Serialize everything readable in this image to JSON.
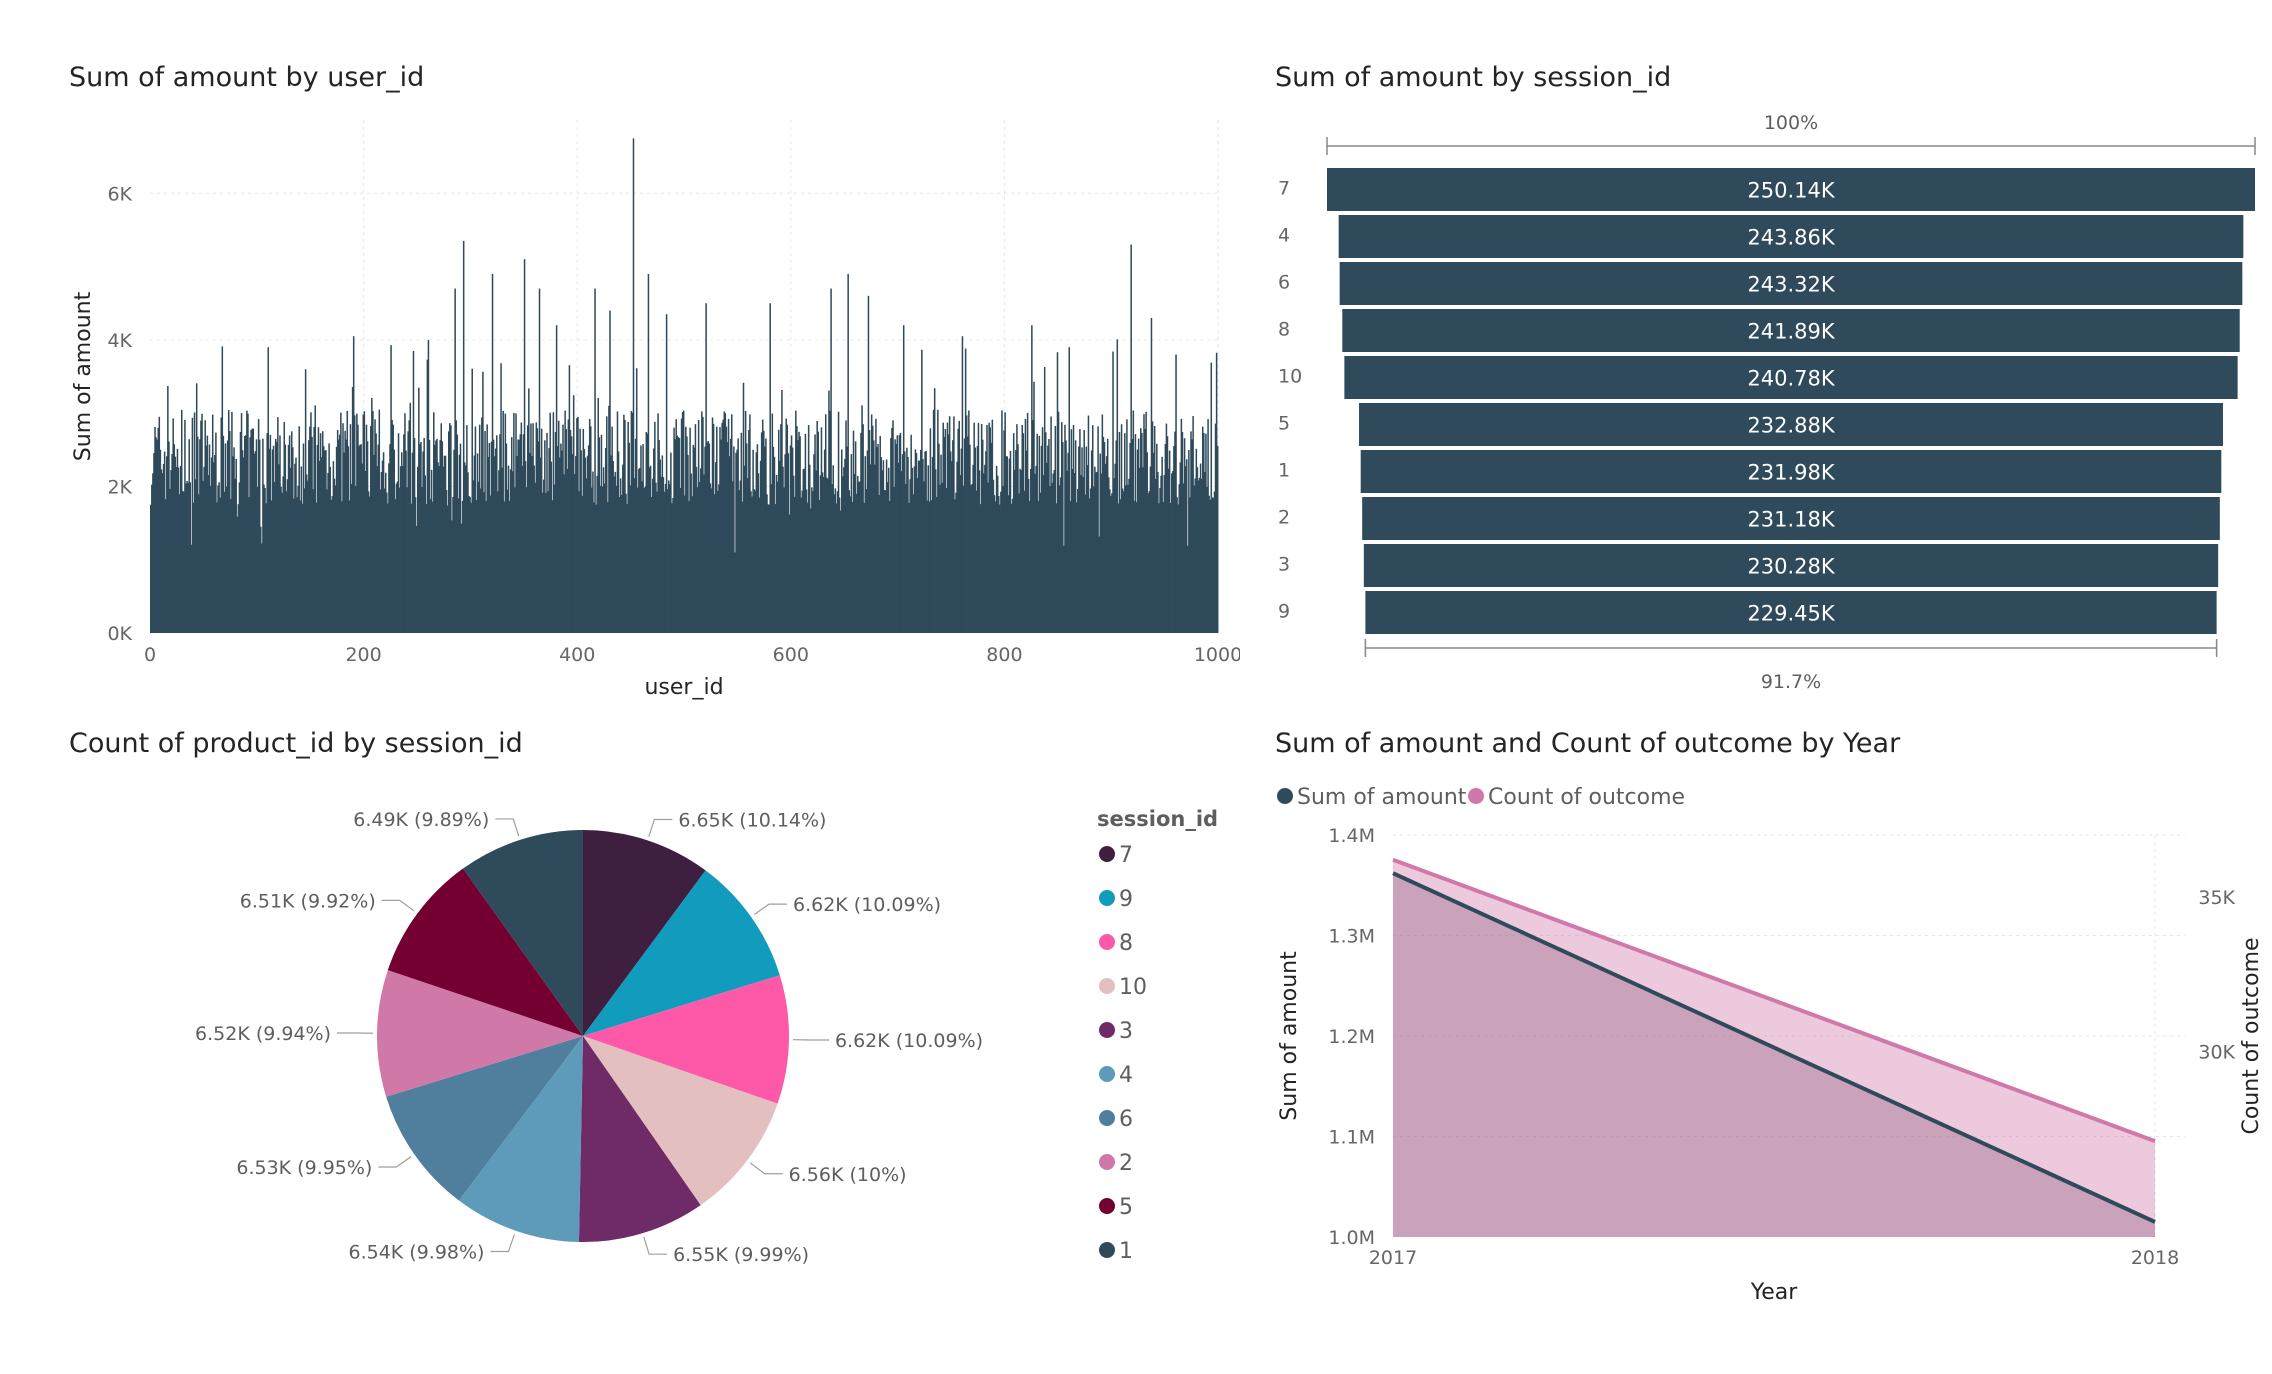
{
  "chart_data": [
    {
      "id": "user",
      "type": "bar",
      "title": "Sum of amount by user_id",
      "xlabel": "user_id",
      "ylabel": "Sum of amount",
      "xlim": [
        0,
        1000
      ],
      "ylim": [
        0,
        7000
      ],
      "x_ticks": [
        "0",
        "200",
        "400",
        "600",
        "800",
        "1000"
      ],
      "y_ticks": [
        "0K",
        "2K",
        "4K",
        "6K"
      ],
      "bar_color": "#2f4a5a",
      "grid": true,
      "n_points": 1000,
      "baseline_approx": 2400,
      "spikes": [
        {
          "x": 110,
          "y": 3900
        },
        {
          "x": 145,
          "y": 3600
        },
        {
          "x": 190,
          "y": 4050
        },
        {
          "x": 260,
          "y": 4000
        },
        {
          "x": 285,
          "y": 4700
        },
        {
          "x": 293,
          "y": 5350
        },
        {
          "x": 320,
          "y": 4900
        },
        {
          "x": 350,
          "y": 5100
        },
        {
          "x": 364,
          "y": 4700
        },
        {
          "x": 380,
          "y": 4200
        },
        {
          "x": 416,
          "y": 4700
        },
        {
          "x": 430,
          "y": 4400
        },
        {
          "x": 452,
          "y": 6750
        },
        {
          "x": 466,
          "y": 4900
        },
        {
          "x": 483,
          "y": 4350
        },
        {
          "x": 520,
          "y": 4500
        },
        {
          "x": 580,
          "y": 4500
        },
        {
          "x": 637,
          "y": 4700
        },
        {
          "x": 653,
          "y": 4900
        },
        {
          "x": 672,
          "y": 4600
        },
        {
          "x": 705,
          "y": 4200
        },
        {
          "x": 760,
          "y": 4050
        },
        {
          "x": 825,
          "y": 4200
        },
        {
          "x": 860,
          "y": 3900
        },
        {
          "x": 918,
          "y": 5300
        },
        {
          "x": 937,
          "y": 4300
        },
        {
          "x": 960,
          "y": 3800
        }
      ]
    },
    {
      "id": "session",
      "type": "funnel",
      "title": "Sum of amount by session_id",
      "top_pct": "100%",
      "bottom_pct": "91.7%",
      "bar_color": "#2f4a5a",
      "categories": [
        "7",
        "4",
        "6",
        "8",
        "10",
        "5",
        "1",
        "2",
        "3",
        "9"
      ],
      "values": [
        250.14,
        243.86,
        243.32,
        241.89,
        240.78,
        232.88,
        231.98,
        231.18,
        230.28,
        229.45
      ],
      "labels": [
        "250.14K",
        "243.86K",
        "243.32K",
        "241.89K",
        "240.78K",
        "232.88K",
        "231.98K",
        "231.18K",
        "230.28K",
        "229.45K"
      ]
    },
    {
      "id": "pie",
      "type": "pie",
      "title": "Count of product_id by session_id",
      "legend_title": "session_id",
      "legend_position": "right",
      "slices": [
        {
          "name": "7",
          "value": 6.65,
          "pct": 10.14,
          "label": "6.65K (10.14%)",
          "color": "#3f1f3f"
        },
        {
          "name": "9",
          "value": 6.62,
          "pct": 10.09,
          "label": "6.62K (10.09%)",
          "color": "#119bbd"
        },
        {
          "name": "8",
          "value": 6.62,
          "pct": 10.09,
          "label": "6.62K (10.09%)",
          "color": "#fe58a9"
        },
        {
          "name": "10",
          "value": 6.56,
          "pct": 10.0,
          "label": "6.56K (10%)",
          "color": "#e4bfbf"
        },
        {
          "name": "3",
          "value": 6.55,
          "pct": 9.99,
          "label": "6.55K (9.99%)",
          "color": "#6f2b68"
        },
        {
          "name": "4",
          "value": 6.54,
          "pct": 9.98,
          "label": "6.54K (9.98%)",
          "color": "#5e9bba"
        },
        {
          "name": "6",
          "value": 6.53,
          "pct": 9.95,
          "label": "6.53K (9.95%)",
          "color": "#4f7f9c"
        },
        {
          "name": "2",
          "value": 6.52,
          "pct": 9.94,
          "label": "6.52K (9.94%)",
          "color": "#d078a8"
        },
        {
          "name": "5",
          "value": 6.51,
          "pct": 9.92,
          "label": "6.51K (9.92%)",
          "color": "#730030"
        },
        {
          "name": "1",
          "value": 6.49,
          "pct": 9.89,
          "label": "6.49K (9.89%)",
          "color": "#2f4a5a"
        }
      ]
    },
    {
      "id": "year",
      "type": "area",
      "title": "Sum of amount and Count of outcome by Year",
      "xlabel": "Year",
      "ylabel": "Sum of amount",
      "y2label": "Count of outcome",
      "categories": [
        "2017",
        "2018"
      ],
      "ylim": [
        1000000,
        1400000
      ],
      "y_ticks": [
        {
          "value": 1000000,
          "label": "1.0M"
        },
        {
          "value": 1100000,
          "label": "1.1M"
        },
        {
          "value": 1200000,
          "label": "1.2M"
        },
        {
          "value": 1300000,
          "label": "1.3M"
        },
        {
          "value": 1400000,
          "label": "1.4M"
        }
      ],
      "y2lim": [
        24000,
        37000
      ],
      "y2_ticks": [
        {
          "value": 30000,
          "label": "30K"
        },
        {
          "value": 35000,
          "label": "35K"
        }
      ],
      "legend_position": "top-left",
      "series": [
        {
          "name": "Sum of amount",
          "values": [
            1362000,
            1015000
          ],
          "color": "#2f4a5a",
          "axis": "left"
        },
        {
          "name": "Count of outcome",
          "values": [
            36200,
            27100
          ],
          "color": "#d078a8",
          "axis": "right"
        }
      ]
    }
  ]
}
